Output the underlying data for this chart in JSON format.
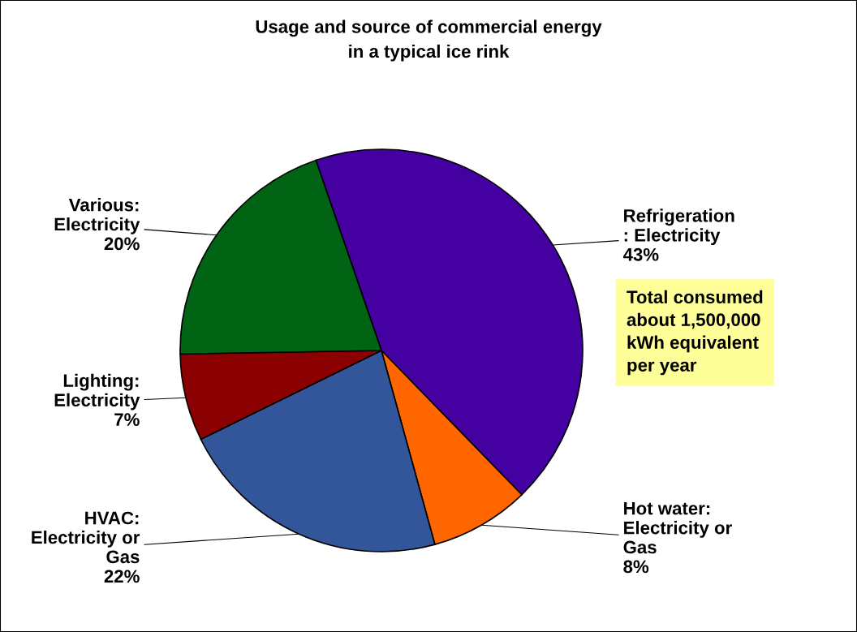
{
  "chart_data": {
    "type": "pie",
    "title": "Usage and source of commercial energy\nin a typical ice rink",
    "categories": [
      "Refrigeration\n: Electricity",
      "Hot water:\nElectricity or\nGas",
      "HVAC:\nElectricity or\nGas",
      "Lighting:\nElectricity",
      "Various:\nElectricity"
    ],
    "values": [
      43,
      8,
      22,
      7,
      20
    ],
    "colors": [
      "#4400a0",
      "#ff6600",
      "#335599",
      "#8b0000",
      "#006414"
    ],
    "value_labels": [
      "43%",
      "8%",
      "22%",
      "7%",
      "20%"
    ],
    "annotations": [
      "Total consumed\nabout 1,500,000\nkWh equivalent\nper year"
    ]
  }
}
